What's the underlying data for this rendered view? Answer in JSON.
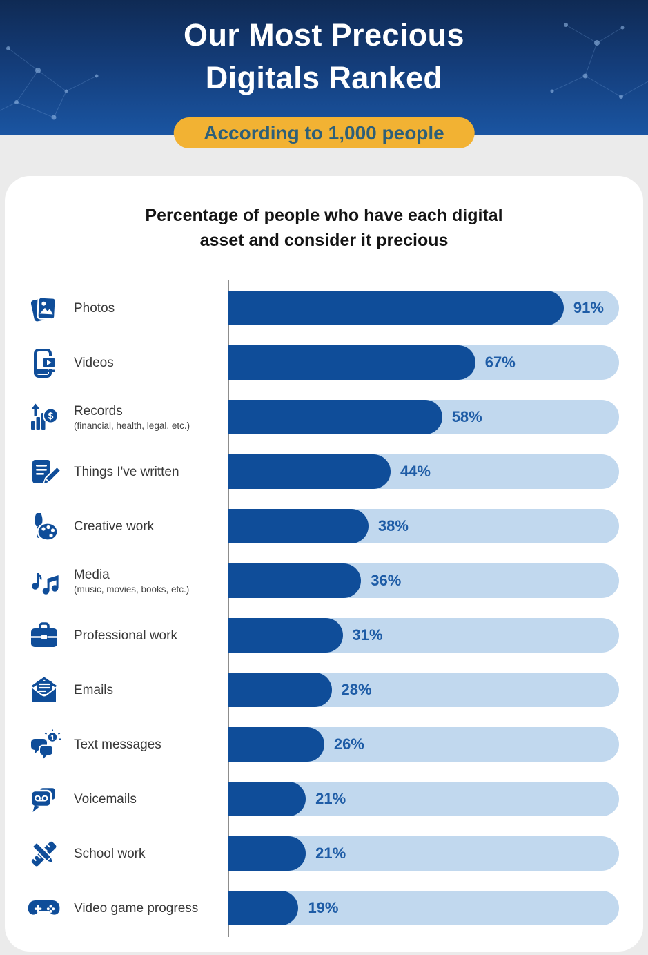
{
  "header": {
    "title_line1": "Our Most Precious",
    "title_line2": "Digitals Ranked",
    "badge": "According to 1,000 people"
  },
  "chart_heading": {
    "line1": "Percentage of people who have each digital",
    "line2": "asset and consider it precious"
  },
  "colors": {
    "header_top": "#0f2a54",
    "header_bottom": "#1a55a2",
    "badge_bg": "#f2b233",
    "badge_text": "#2e5f78",
    "card_bg": "#ffffff",
    "page_bg": "#ebebeb",
    "bar_fill": "#0f4d99",
    "bar_track": "#c1d8ee",
    "value_text": "#1e5ca6",
    "label_text": "#383838",
    "axis": "#8d8d8d"
  },
  "chart_data": {
    "type": "bar",
    "orientation": "horizontal",
    "title": "Percentage of people who have each digital asset and consider it precious",
    "xlabel": "",
    "ylabel": "",
    "xlim": [
      0,
      106
    ],
    "grid": false,
    "legend": null,
    "value_suffix": "%",
    "categories": [
      "Photos",
      "Videos",
      "Records",
      "Things I've written",
      "Creative work",
      "Media",
      "Professional work",
      "Emails",
      "Text messages",
      "Voicemails",
      "School work",
      "Video game progress"
    ],
    "values": [
      91,
      67,
      58,
      44,
      38,
      36,
      31,
      28,
      26,
      21,
      21,
      19
    ],
    "rows": [
      {
        "label": "Photos",
        "sublabel": "",
        "icon": "photos-icon",
        "value": 91,
        "display": "91%"
      },
      {
        "label": "Videos",
        "sublabel": "",
        "icon": "videos-icon",
        "value": 67,
        "display": "67%"
      },
      {
        "label": "Records",
        "sublabel": "(financial, health, legal, etc.)",
        "icon": "records-icon",
        "value": 58,
        "display": "58%"
      },
      {
        "label": "Things I've written",
        "sublabel": "",
        "icon": "written-things-icon",
        "value": 44,
        "display": "44%"
      },
      {
        "label": "Creative work",
        "sublabel": "",
        "icon": "creative-work-icon",
        "value": 38,
        "display": "38%"
      },
      {
        "label": "Media",
        "sublabel": "(music, movies, books, etc.)",
        "icon": "media-icon",
        "value": 36,
        "display": "36%"
      },
      {
        "label": "Professional work",
        "sublabel": "",
        "icon": "professional-work-icon",
        "value": 31,
        "display": "31%"
      },
      {
        "label": "Emails",
        "sublabel": "",
        "icon": "emails-icon",
        "value": 28,
        "display": "28%"
      },
      {
        "label": "Text messages",
        "sublabel": "",
        "icon": "text-messages-icon",
        "value": 26,
        "display": "26%"
      },
      {
        "label": "Voicemails",
        "sublabel": "",
        "icon": "voicemails-icon",
        "value": 21,
        "display": "21%"
      },
      {
        "label": "School work",
        "sublabel": "",
        "icon": "school-work-icon",
        "value": 21,
        "display": "21%"
      },
      {
        "label": "Video game progress",
        "sublabel": "",
        "icon": "video-game-icon",
        "value": 19,
        "display": "19%"
      }
    ]
  }
}
